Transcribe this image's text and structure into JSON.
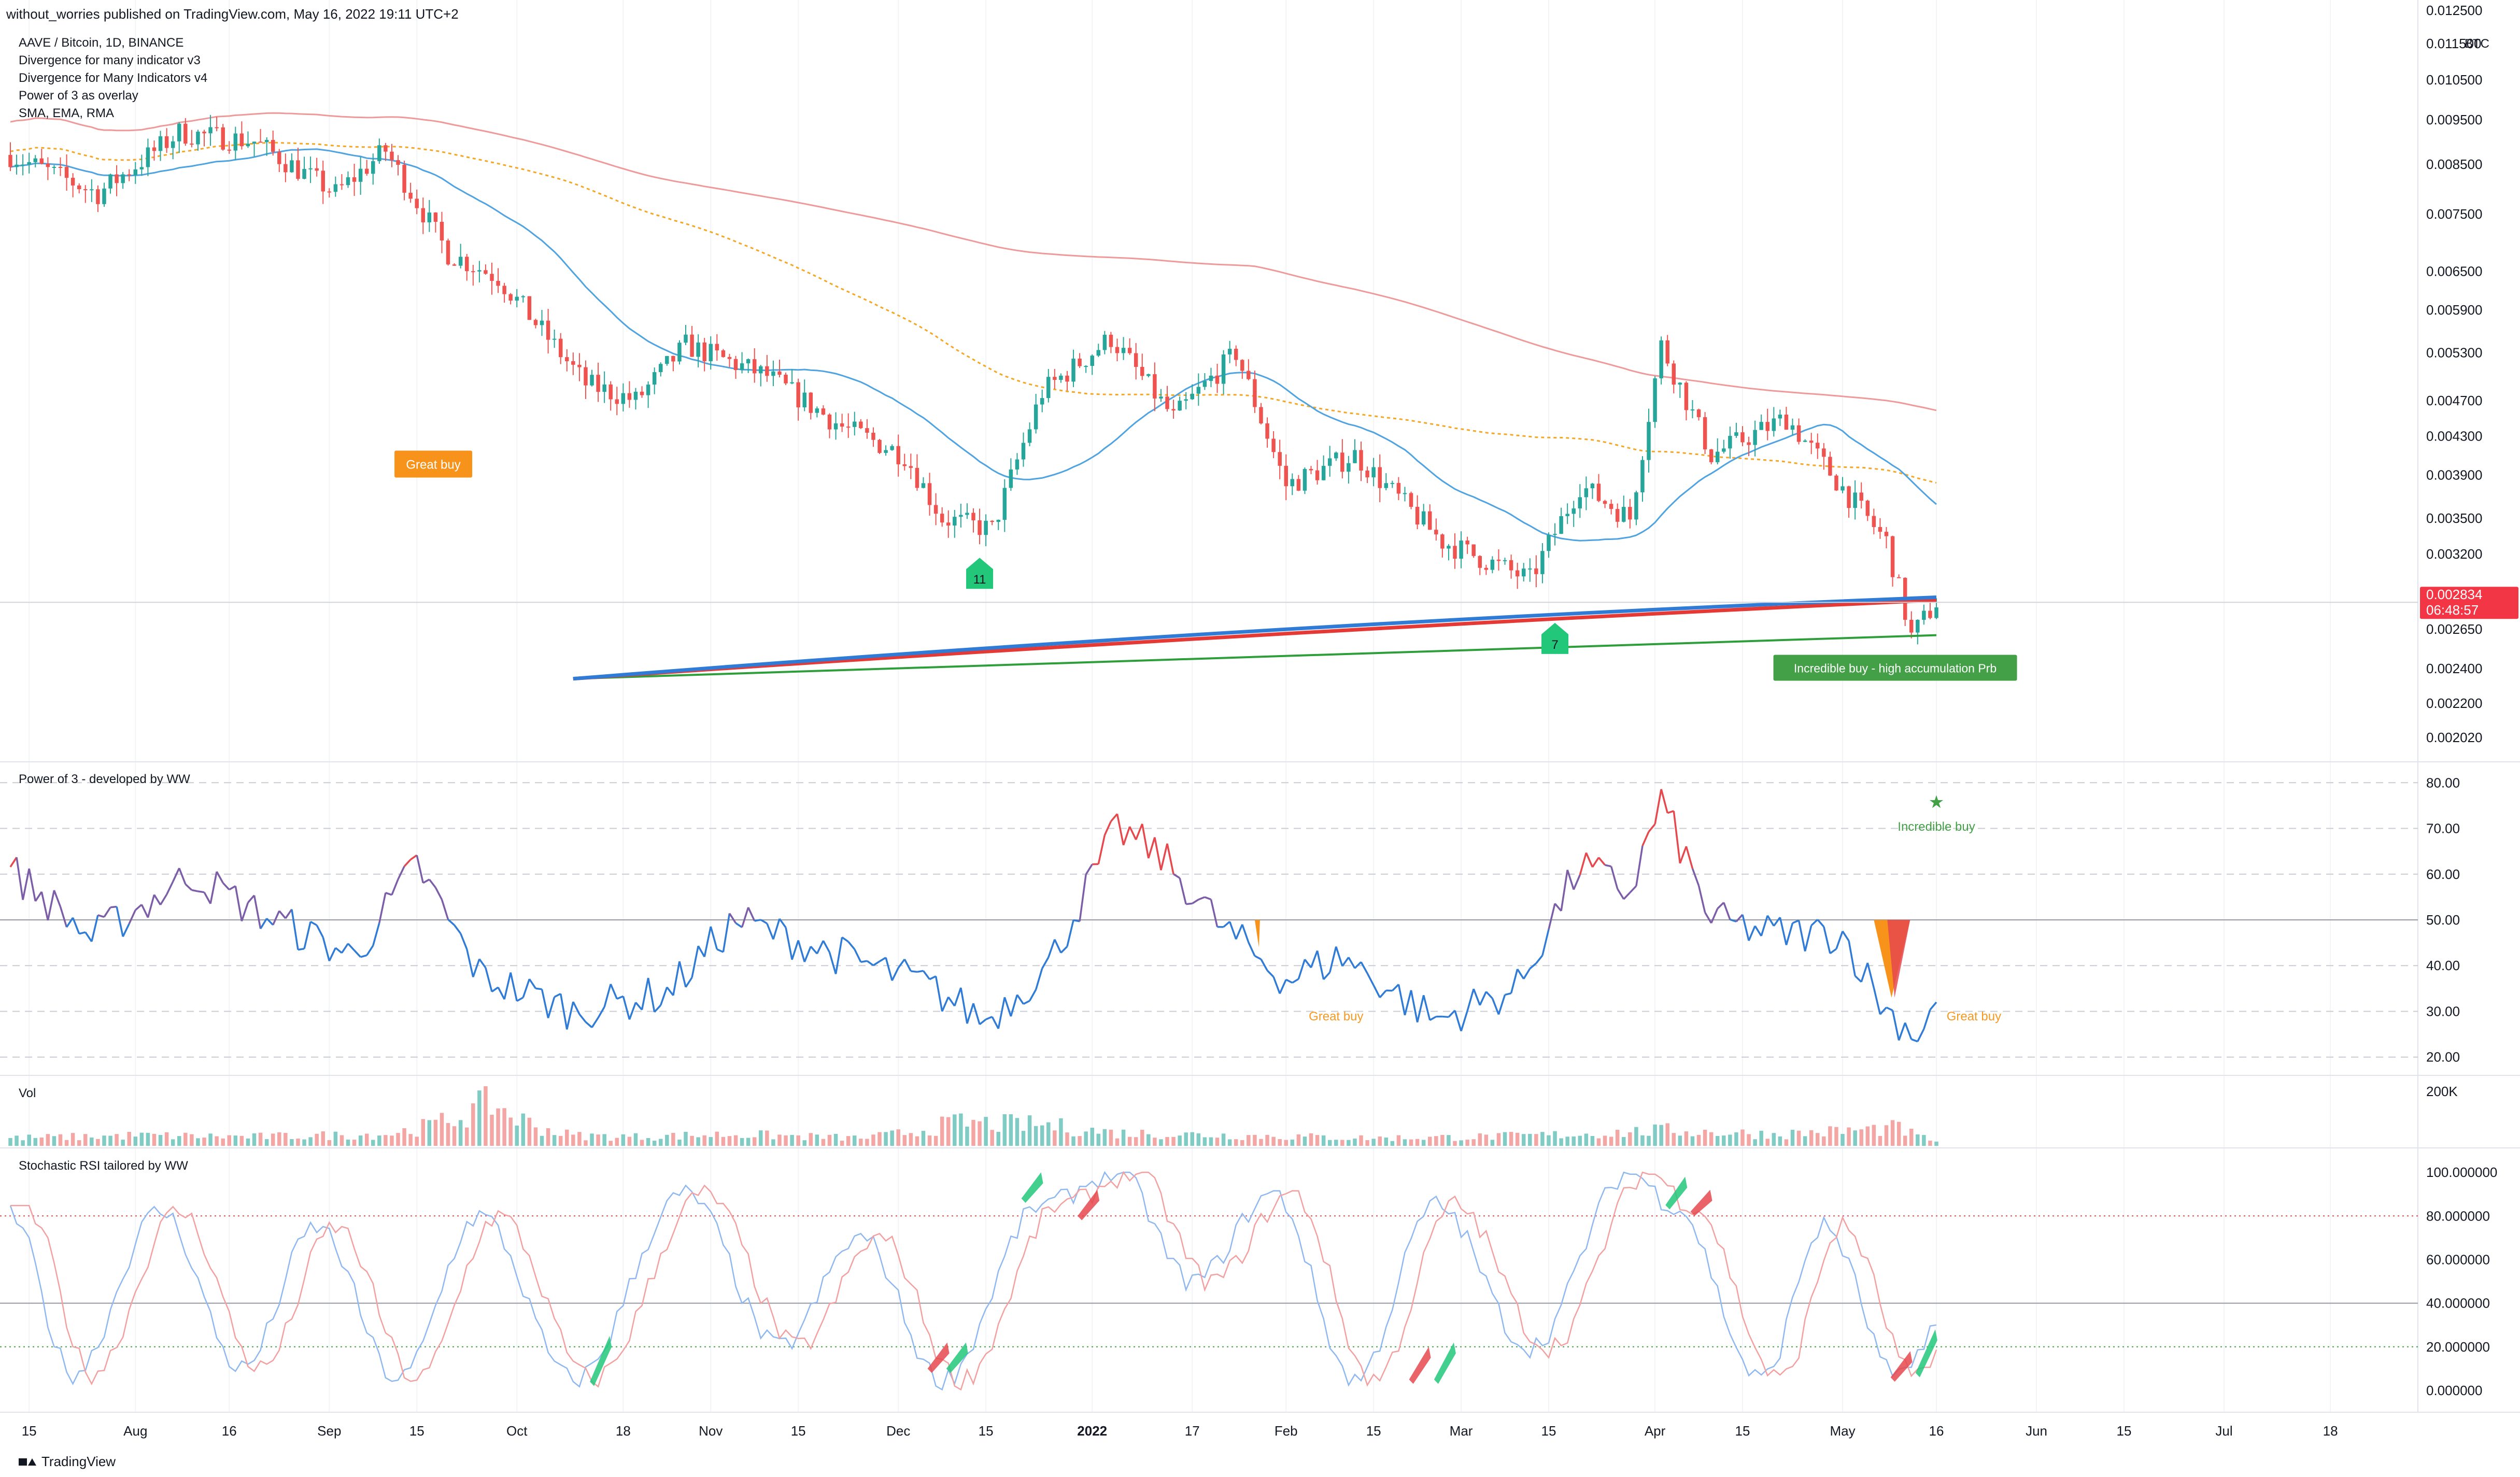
{
  "header": {
    "published": "without_worries published on TradingView.com, May 16, 2022 19:11 UTC+2"
  },
  "legend": [
    "AAVE / Bitcoin, 1D, BINANCE",
    "Divergence for many indicator v3",
    "Divergence for Many Indicators v4",
    "Power of 3 as overlay",
    "SMA, EMA, RMA"
  ],
  "price_axis": {
    "currency": "BTC",
    "ticks": [
      "0.012500",
      "0.011500",
      "0.010500",
      "0.009500",
      "0.008500",
      "0.007500",
      "0.006500",
      "0.005900",
      "0.005300",
      "0.004700",
      "0.004300",
      "0.003900",
      "0.003500",
      "0.003200",
      "0.002900",
      "0.002650",
      "0.002400",
      "0.002200",
      "0.002020"
    ],
    "last_price": "0.002834",
    "countdown": "06:48:57",
    "last_price_color": "#f23645"
  },
  "time_axis": [
    "15",
    "Aug",
    "16",
    "Sep",
    "15",
    "Oct",
    "18",
    "Nov",
    "15",
    "Dec",
    "15",
    "2022",
    "17",
    "Feb",
    "15",
    "Mar",
    "15",
    "Apr",
    "15",
    "May",
    "16",
    "Jun",
    "15",
    "Jul",
    "18"
  ],
  "annotations": {
    "great_buy": "Great buy",
    "marker_11": "11",
    "marker_7": "7",
    "incredible_buy": "Incredible buy - high accumulation Prb"
  },
  "power3": {
    "title": "Power of 3 - developed by WW",
    "ticks": [
      "80.00",
      "70.00",
      "60.00",
      "50.00",
      "40.00",
      "30.00",
      "20.00"
    ],
    "great_buy_1": "Great buy",
    "great_buy_2": "Great buy",
    "incredible": "Incredible buy",
    "star": "★"
  },
  "volume": {
    "title": "Vol",
    "tick": "200K"
  },
  "stoch": {
    "title": "Stochastic RSI tailored by WW",
    "ticks": [
      "100.000000",
      "80.000000",
      "60.000000",
      "40.000000",
      "20.000000",
      "0.000000"
    ]
  },
  "brand": "TradingView",
  "colors": {
    "up": "#26a69a",
    "down": "#ef5350",
    "sma": "#4fa3e0",
    "ema": "#f5a623",
    "rma": "#ef9a9a"
  },
  "chart_data": [
    {
      "type": "candlestick",
      "title": "AAVE / Bitcoin, 1D, BINANCE",
      "ylabel": "BTC",
      "x_range": [
        "2021-07-12",
        "2022-08-01"
      ],
      "ylim": [
        0.00195,
        0.0125
      ],
      "yscale": "log",
      "close_path": [
        [
          "2021-07-12",
          0.0087
        ],
        [
          "2021-07-26",
          0.0079
        ],
        [
          "2021-08-08",
          0.0092
        ],
        [
          "2021-08-20",
          0.009
        ],
        [
          "2021-09-02",
          0.0079
        ],
        [
          "2021-09-10",
          0.0088
        ],
        [
          "2021-09-20",
          0.0068
        ],
        [
          "2021-09-28",
          0.0064
        ],
        [
          "2021-10-12",
          0.0049
        ],
        [
          "2021-10-20",
          0.0047
        ],
        [
          "2021-10-28",
          0.0054
        ],
        [
          "2021-11-10",
          0.005
        ],
        [
          "2021-11-22",
          0.0044
        ],
        [
          "2021-12-02",
          0.0041
        ],
        [
          "2021-12-08",
          0.0035
        ],
        [
          "2021-12-16",
          0.0034
        ],
        [
          "2021-12-24",
          0.0048
        ],
        [
          "2022-01-04",
          0.0055
        ],
        [
          "2022-01-14",
          0.0045
        ],
        [
          "2022-01-24",
          0.0053
        ],
        [
          "2022-02-01",
          0.0038
        ],
        [
          "2022-02-12",
          0.0041
        ],
        [
          "2022-02-26",
          0.0033
        ],
        [
          "2022-03-12",
          0.003
        ],
        [
          "2022-03-20",
          0.0038
        ],
        [
          "2022-03-28",
          0.0035
        ],
        [
          "2022-04-02",
          0.0054
        ],
        [
          "2022-04-10",
          0.0041
        ],
        [
          "2022-04-22",
          0.0045
        ],
        [
          "2022-05-02",
          0.0037
        ],
        [
          "2022-05-08",
          0.0033
        ],
        [
          "2022-05-12",
          0.0026
        ],
        [
          "2022-05-16",
          0.002834
        ]
      ]
    },
    {
      "type": "line",
      "title": "Power of 3 - developed by WW",
      "ylim": [
        16,
        84
      ],
      "reference_lines": [
        80,
        50,
        30,
        20
      ],
      "x": [
        "2021-07-12",
        "2021-07-25",
        "2021-08-10",
        "2021-08-20",
        "2021-09-05",
        "2021-09-15",
        "2021-09-25",
        "2021-10-10",
        "2021-10-25",
        "2021-11-05",
        "2021-11-20",
        "2021-12-05",
        "2021-12-15",
        "2021-12-25",
        "2022-01-05",
        "2022-01-12",
        "2022-01-22",
        "2022-02-01",
        "2022-02-10",
        "2022-02-25",
        "2022-03-10",
        "2022-03-20",
        "2022-03-28",
        "2022-04-02",
        "2022-04-10",
        "2022-04-20",
        "2022-05-01",
        "2022-05-08",
        "2022-05-13",
        "2022-05-16"
      ],
      "y": [
        61,
        46,
        60,
        52,
        42,
        62,
        38,
        30,
        34,
        50,
        43,
        36,
        28,
        40,
        70,
        64,
        48,
        37,
        42,
        28,
        35,
        62,
        56,
        76,
        50,
        47,
        47,
        30,
        25,
        32
      ]
    },
    {
      "type": "bar",
      "title": "Vol",
      "ylim": [
        0,
        200000
      ],
      "x": [
        "2021-07-12",
        "2021-08-01",
        "2021-08-20",
        "2021-09-10",
        "2021-09-27",
        "2021-10-10",
        "2021-10-20",
        "2021-11-05",
        "2021-11-25",
        "2021-12-10",
        "2021-12-25",
        "2022-01-05",
        "2022-01-25",
        "2022-02-15",
        "2022-03-05",
        "2022-03-25",
        "2022-04-03",
        "2022-04-20",
        "2022-05-10",
        "2022-05-16"
      ],
      "values": [
        30000,
        40000,
        35000,
        45000,
        170000,
        40000,
        35000,
        45000,
        30000,
        90000,
        80000,
        50000,
        40000,
        30000,
        35000,
        50000,
        60000,
        45000,
        70000,
        20000
      ]
    },
    {
      "type": "line",
      "title": "Stochastic RSI tailored by WW",
      "ylim": [
        -10,
        110
      ],
      "reference_lines": [
        80,
        40,
        20
      ],
      "x": [
        "2021-07-12",
        "2021-07-22",
        "2021-08-05",
        "2021-08-18",
        "2021-08-30",
        "2021-09-12",
        "2021-09-25",
        "2021-10-10",
        "2021-10-28",
        "2021-11-12",
        "2021-11-25",
        "2021-12-08",
        "2021-12-24",
        "2022-01-05",
        "2022-01-17",
        "2022-01-30",
        "2022-02-12",
        "2022-02-25",
        "2022-03-12",
        "2022-03-28",
        "2022-04-04",
        "2022-04-18",
        "2022-04-28",
        "2022-05-10",
        "2022-05-16"
      ],
      "y": [
        80,
        8,
        82,
        10,
        75,
        5,
        80,
        5,
        90,
        20,
        70,
        5,
        85,
        100,
        50,
        90,
        5,
        85,
        20,
        100,
        85,
        5,
        75,
        5,
        30
      ]
    }
  ]
}
